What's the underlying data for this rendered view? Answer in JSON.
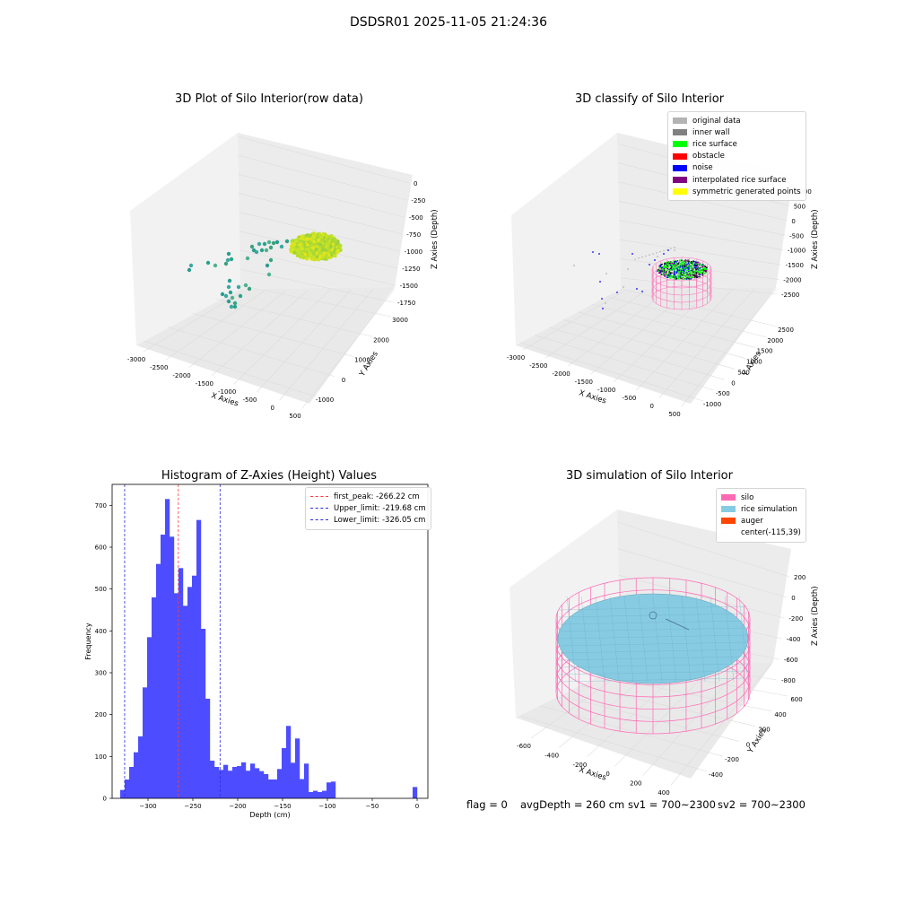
{
  "suptitle": "DSDSR01 2025-11-05 21:24:36",
  "colors": {
    "histogram_bar": "#4d4dff",
    "first_peak_line": "#ff3b3b",
    "limit_line": "#2a2ad8",
    "silo": "#ff69b4",
    "rice_simulation": "#87cbe3",
    "auger": "#ff4500",
    "original_data": "#b3b3b3",
    "inner_wall": "#808080",
    "rice_surface": "#00ff00",
    "obstacle": "#ff0000",
    "noise": "#0000ff",
    "interpolated_rice_surface": "#800080",
    "symmetric_generated_points": "#ffff00"
  },
  "chart_data": [
    {
      "type": "scatter",
      "title": "3D Plot of Silo Interior(row data)",
      "xlabel": "X Axies",
      "ylabel": "Y Axies",
      "zlabel": "Z Axies (Depth)",
      "x_ticks": [
        "-3000",
        "-2500",
        "-2000",
        "-1500",
        "-1000",
        "-500",
        "0",
        "500"
      ],
      "y_ticks": [
        "-1000",
        "0",
        "1000",
        "2000",
        "3000"
      ],
      "z_ticks": [
        "0",
        "-250",
        "-500",
        "-750",
        "-1000",
        "-1250",
        "-1500",
        "-1750"
      ]
    },
    {
      "type": "scatter",
      "title": "3D classify of Silo Interior",
      "xlabel": "X Axies",
      "ylabel": "Y Axies",
      "zlabel": "Z Axies (Depth)",
      "x_ticks": [
        "-3000",
        "-2500",
        "-2000",
        "-1500",
        "-1000",
        "-500",
        "0",
        "500"
      ],
      "y_ticks": [
        "-1000",
        "-500",
        "0",
        "500",
        "1000",
        "1500",
        "2000",
        "2500"
      ],
      "z_ticks": [
        "1000",
        "500",
        "0",
        "-500",
        "-1000",
        "-1500",
        "-2000",
        "-2500"
      ],
      "legend": [
        {
          "label": "original data",
          "color": "#b3b3b3"
        },
        {
          "label": "inner wall",
          "color": "#808080"
        },
        {
          "label": "rice surface",
          "color": "#00ff00"
        },
        {
          "label": "obstacle",
          "color": "#ff0000"
        },
        {
          "label": "noise",
          "color": "#0000ff"
        },
        {
          "label": "interpolated rice surface",
          "color": "#800080"
        },
        {
          "label": "symmetric generated points",
          "color": "#ffff00"
        }
      ]
    },
    {
      "type": "bar",
      "title": "Histogram of Z-Axies (Height) Values",
      "xlabel": "Depth (cm)",
      "ylabel": "Frequency",
      "xlim": [
        -340,
        12
      ],
      "ylim": [
        0,
        750
      ],
      "x_ticks": [
        -300,
        -250,
        -200,
        -150,
        -100,
        -50,
        0
      ],
      "y_ticks": [
        0,
        100,
        200,
        300,
        400,
        500,
        600,
        700
      ],
      "bin_width": 5,
      "bins": [
        {
          "x0": -331.0,
          "v": 20
        },
        {
          "x0": -326.0,
          "v": 45
        },
        {
          "x0": -321.0,
          "v": 75
        },
        {
          "x0": -316.0,
          "v": 110
        },
        {
          "x0": -311.0,
          "v": 148
        },
        {
          "x0": -306.0,
          "v": 265
        },
        {
          "x0": -301.0,
          "v": 385
        },
        {
          "x0": -296.0,
          "v": 480
        },
        {
          "x0": -291.0,
          "v": 560
        },
        {
          "x0": -286.0,
          "v": 630
        },
        {
          "x0": -281.0,
          "v": 715
        },
        {
          "x0": -276.0,
          "v": 625
        },
        {
          "x0": -271.0,
          "v": 490
        },
        {
          "x0": -266.0,
          "v": 550
        },
        {
          "x0": -261.0,
          "v": 460
        },
        {
          "x0": -256.0,
          "v": 505
        },
        {
          "x0": -251.0,
          "v": 532
        },
        {
          "x0": -246.0,
          "v": 665
        },
        {
          "x0": -241.0,
          "v": 405
        },
        {
          "x0": -236.0,
          "v": 238
        },
        {
          "x0": -231.0,
          "v": 90
        },
        {
          "x0": -226.0,
          "v": 75
        },
        {
          "x0": -221.0,
          "v": 68
        },
        {
          "x0": -216.0,
          "v": 80
        },
        {
          "x0": -211.0,
          "v": 66
        },
        {
          "x0": -206.0,
          "v": 75
        },
        {
          "x0": -201.0,
          "v": 77
        },
        {
          "x0": -196.0,
          "v": 86
        },
        {
          "x0": -191.0,
          "v": 66
        },
        {
          "x0": -186.0,
          "v": 83
        },
        {
          "x0": -181.0,
          "v": 72
        },
        {
          "x0": -176.0,
          "v": 65
        },
        {
          "x0": -171.0,
          "v": 58
        },
        {
          "x0": -166.0,
          "v": 45
        },
        {
          "x0": -161.0,
          "v": 45
        },
        {
          "x0": -156.0,
          "v": 70
        },
        {
          "x0": -151.0,
          "v": 120
        },
        {
          "x0": -146.0,
          "v": 173
        },
        {
          "x0": -141.0,
          "v": 85
        },
        {
          "x0": -136.0,
          "v": 143
        },
        {
          "x0": -131.0,
          "v": 46
        },
        {
          "x0": -126.0,
          "v": 83
        },
        {
          "x0": -121.0,
          "v": 15
        },
        {
          "x0": -116.0,
          "v": 18
        },
        {
          "x0": -111.0,
          "v": 15
        },
        {
          "x0": -106.0,
          "v": 18
        },
        {
          "x0": -101.0,
          "v": 38
        },
        {
          "x0": -96.0,
          "v": 40
        },
        {
          "x0": -5.0,
          "v": 27
        }
      ],
      "lines": [
        {
          "label": "first_peak: -266.22 cm",
          "x": -266.22,
          "color": "#ff3b3b"
        },
        {
          "label": "Upper_limit: -219.68 cm",
          "x": -219.68,
          "color": "#2a2ad8"
        },
        {
          "label": "Lower_limit: -326.05 cm",
          "x": -326.05,
          "color": "#2a2ad8"
        }
      ]
    },
    {
      "type": "scatter",
      "title": "3D simulation of Silo Interior",
      "xlabel": "X Axies",
      "ylabel": "Y Axies",
      "zlabel": "Z Axies (Depth)",
      "x_ticks": [
        "-600",
        "-400",
        "-200",
        "0",
        "200",
        "400"
      ],
      "y_ticks": [
        "-400",
        "-200",
        "0",
        "200",
        "400",
        "600"
      ],
      "z_ticks": [
        "200",
        "0",
        "-200",
        "-400",
        "-600",
        "-800"
      ],
      "legend": [
        {
          "label": "silo",
          "color": "#ff69b4"
        },
        {
          "label": "rice simulation",
          "color": "#87cbe3"
        },
        {
          "label": "auger",
          "color": "#ff4500"
        },
        {
          "label": "center(-115,39)",
          "color": ""
        }
      ]
    }
  ],
  "bottom": {
    "flag": "flag = 0",
    "avg": "avgDepth = 260 cm",
    "sv1": "sv1 = 700~2300",
    "sv2": "sv2 = 700~2300"
  }
}
